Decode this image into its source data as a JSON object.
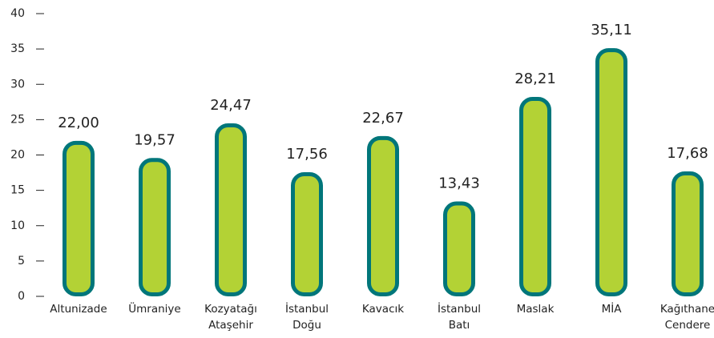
{
  "chart_data": {
    "type": "bar",
    "categories": [
      "Altunizade",
      "Ümraniye",
      "Kozyatağı Ataşehir",
      "İstanbul Doğu",
      "Kavacık",
      "İstanbul Batı",
      "Maslak",
      "MİA",
      "Kağıthane Cendere"
    ],
    "values": [
      22.0,
      19.57,
      24.47,
      17.56,
      22.67,
      13.43,
      28.21,
      35.11,
      17.68
    ],
    "value_labels": [
      "22,00",
      "19,57",
      "24,47",
      "17,56",
      "22,67",
      "13,43",
      "28,21",
      "35,11",
      "17,68"
    ],
    "color": "#b3d235",
    "edge_color": "#00767a",
    "ylim": [
      0,
      40
    ],
    "yticks": [
      0,
      5,
      10,
      15,
      20,
      25,
      30,
      35,
      40
    ],
    "grid": false
  }
}
